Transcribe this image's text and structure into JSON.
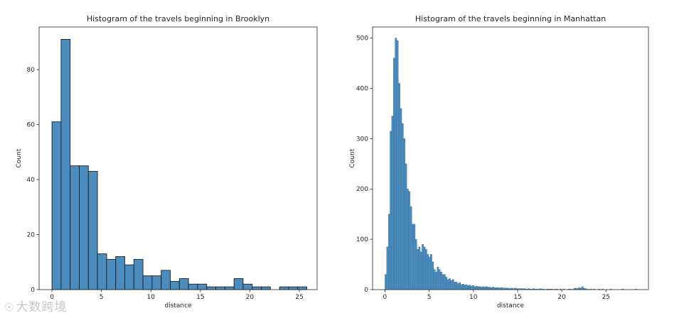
{
  "chart_data": [
    {
      "type": "bar",
      "title": "Histogram of the travels beginning in Brooklyn",
      "xlabel": "distance",
      "ylabel": "Count",
      "xlim": [
        -1.3,
        26.8
      ],
      "ylim": [
        0,
        95.5
      ],
      "xticks": [
        0,
        5,
        10,
        15,
        20,
        25
      ],
      "yticks": [
        0,
        20,
        40,
        60,
        80
      ],
      "bin_width": 0.92,
      "bin_start": 0.0,
      "values": [
        61,
        91,
        45,
        45,
        43,
        13,
        11,
        12,
        9,
        11,
        5,
        5,
        7,
        3,
        4,
        2,
        2,
        1,
        1,
        1,
        4,
        2,
        1,
        1,
        0,
        1,
        1,
        1
      ],
      "bar_color": "#4c8dbf",
      "edge_color": "#1f1f1f",
      "grid": false,
      "legend": "none"
    },
    {
      "type": "bar",
      "title": "Histogram of the travels beginning in Manhattan",
      "xlabel": "distance",
      "ylabel": "Count",
      "xlim": [
        -1.4,
        29.8
      ],
      "ylim": [
        0,
        522
      ],
      "xticks": [
        0,
        5,
        10,
        15,
        20,
        25
      ],
      "yticks": [
        0,
        100,
        200,
        300,
        400,
        500
      ],
      "bin_width": 0.19,
      "bin_start": 0.0,
      "values": [
        30,
        85,
        150,
        315,
        345,
        460,
        500,
        495,
        410,
        360,
        330,
        300,
        250,
        200,
        195,
        165,
        130,
        130,
        100,
        80,
        85,
        75,
        90,
        85,
        80,
        70,
        65,
        70,
        55,
        40,
        35,
        45,
        40,
        35,
        30,
        30,
        25,
        20,
        22,
        18,
        20,
        15,
        15,
        12,
        14,
        10,
        11,
        9,
        10,
        8,
        9,
        7,
        8,
        6,
        7,
        6,
        6,
        5,
        6,
        5,
        6,
        5,
        5,
        4,
        5,
        4,
        4,
        4,
        3,
        4,
        3,
        3,
        3,
        3,
        2,
        3,
        2,
        3,
        2,
        2,
        2,
        2,
        2,
        2,
        1,
        2,
        1,
        1,
        2,
        1,
        1,
        1,
        2,
        1,
        1,
        0,
        1,
        1,
        1,
        1,
        0,
        1,
        1,
        0,
        1,
        0,
        1,
        0,
        0,
        1,
        1,
        0,
        2,
        3,
        2,
        4,
        3,
        6,
        3,
        2,
        1,
        0,
        1,
        0,
        1,
        0,
        0,
        1,
        0,
        1,
        0,
        0,
        0,
        0,
        1,
        0,
        0,
        0,
        0,
        0,
        0,
        1,
        0,
        0,
        0,
        0,
        0,
        0,
        0,
        1
      ],
      "bar_color": "#4c8dbf",
      "edge_color": "#3a6e96",
      "grid": false,
      "legend": "none"
    }
  ],
  "watermark": {
    "icon": "camera-icon",
    "text": "大数跨境"
  }
}
